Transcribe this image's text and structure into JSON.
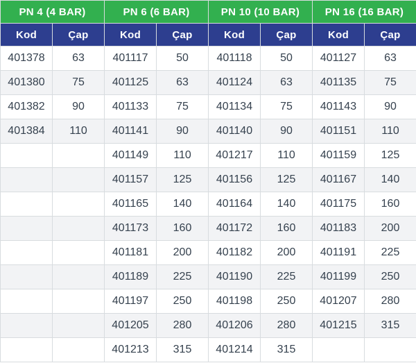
{
  "colors": {
    "header_green": "#32b04f",
    "header_blue": "#2d3e8f",
    "cell_text": "#35414e",
    "row_stripe": "#f2f3f5",
    "grid_border": "#d8dcdf"
  },
  "table": {
    "row_count": 13,
    "groups": [
      {
        "title": "PN 4 (4 BAR)",
        "kod_label": "Kod",
        "cap_label": "Çap",
        "rows": [
          [
            "401378",
            "63"
          ],
          [
            "401380",
            "75"
          ],
          [
            "401382",
            "90"
          ],
          [
            "401384",
            "110"
          ]
        ]
      },
      {
        "title": "PN 6 (6 BAR)",
        "kod_label": "Kod",
        "cap_label": "Çap",
        "rows": [
          [
            "401117",
            "50"
          ],
          [
            "401125",
            "63"
          ],
          [
            "401133",
            "75"
          ],
          [
            "401141",
            "90"
          ],
          [
            "401149",
            "110"
          ],
          [
            "401157",
            "125"
          ],
          [
            "401165",
            "140"
          ],
          [
            "401173",
            "160"
          ],
          [
            "401181",
            "200"
          ],
          [
            "401189",
            "225"
          ],
          [
            "401197",
            "250"
          ],
          [
            "401205",
            "280"
          ],
          [
            "401213",
            "315"
          ]
        ]
      },
      {
        "title": "PN 10 (10 BAR)",
        "kod_label": "Kod",
        "cap_label": "Çap",
        "rows": [
          [
            "401118",
            "50"
          ],
          [
            "401124",
            "63"
          ],
          [
            "401134",
            "75"
          ],
          [
            "401140",
            "90"
          ],
          [
            "401217",
            "110"
          ],
          [
            "401156",
            "125"
          ],
          [
            "401164",
            "140"
          ],
          [
            "401172",
            "160"
          ],
          [
            "401182",
            "200"
          ],
          [
            "401190",
            "225"
          ],
          [
            "401198",
            "250"
          ],
          [
            "401206",
            "280"
          ],
          [
            "401214",
            "315"
          ]
        ]
      },
      {
        "title": "PN 16 (16 BAR)",
        "kod_label": "Kod",
        "cap_label": "Çap",
        "rows": [
          [
            "401127",
            "63"
          ],
          [
            "401135",
            "75"
          ],
          [
            "401143",
            "90"
          ],
          [
            "401151",
            "110"
          ],
          [
            "401159",
            "125"
          ],
          [
            "401167",
            "140"
          ],
          [
            "401175",
            "160"
          ],
          [
            "401183",
            "200"
          ],
          [
            "401191",
            "225"
          ],
          [
            "401199",
            "250"
          ],
          [
            "401207",
            "280"
          ],
          [
            "401215",
            "315"
          ]
        ]
      }
    ]
  }
}
